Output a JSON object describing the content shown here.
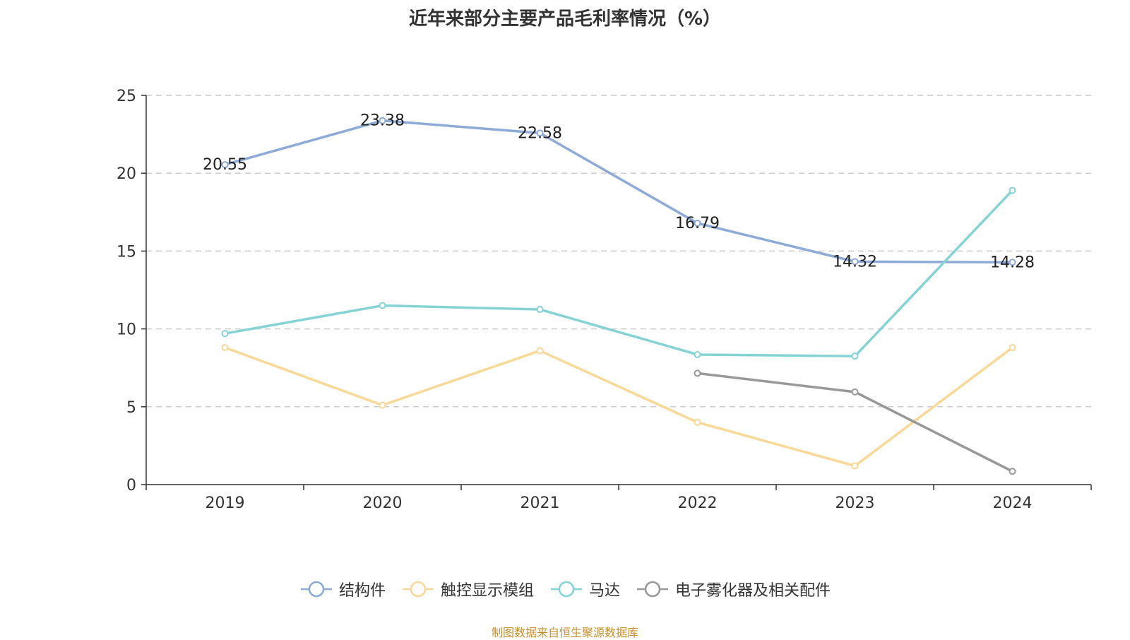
{
  "title": "近年来部分主要产品毛利率情况（%）",
  "source": "制图数据来自恒生聚源数据库",
  "chart_data": {
    "type": "line",
    "categories": [
      "2019",
      "2020",
      "2021",
      "2022",
      "2023",
      "2024"
    ],
    "ylim": [
      0,
      25
    ],
    "yticks": [
      0,
      5,
      10,
      15,
      20,
      25
    ],
    "grid": true,
    "legend_position": "bottom",
    "series": [
      {
        "name": "结构件",
        "color": "#8eaad8",
        "values": [
          20.55,
          23.38,
          22.58,
          16.79,
          14.32,
          14.28
        ],
        "show_labels": true
      },
      {
        "name": "触控显示模组",
        "color": "#f8d998",
        "values": [
          8.8,
          5.1,
          8.6,
          4.0,
          1.2,
          8.8
        ],
        "show_labels": false
      },
      {
        "name": "马达",
        "color": "#86d3d6",
        "values": [
          9.7,
          11.5,
          11.25,
          8.35,
          8.25,
          18.9
        ],
        "show_labels": false
      },
      {
        "name": "电子雾化器及相关配件",
        "color": "#999999",
        "values": [
          null,
          null,
          null,
          7.15,
          5.95,
          0.85
        ],
        "show_labels": false
      }
    ]
  }
}
